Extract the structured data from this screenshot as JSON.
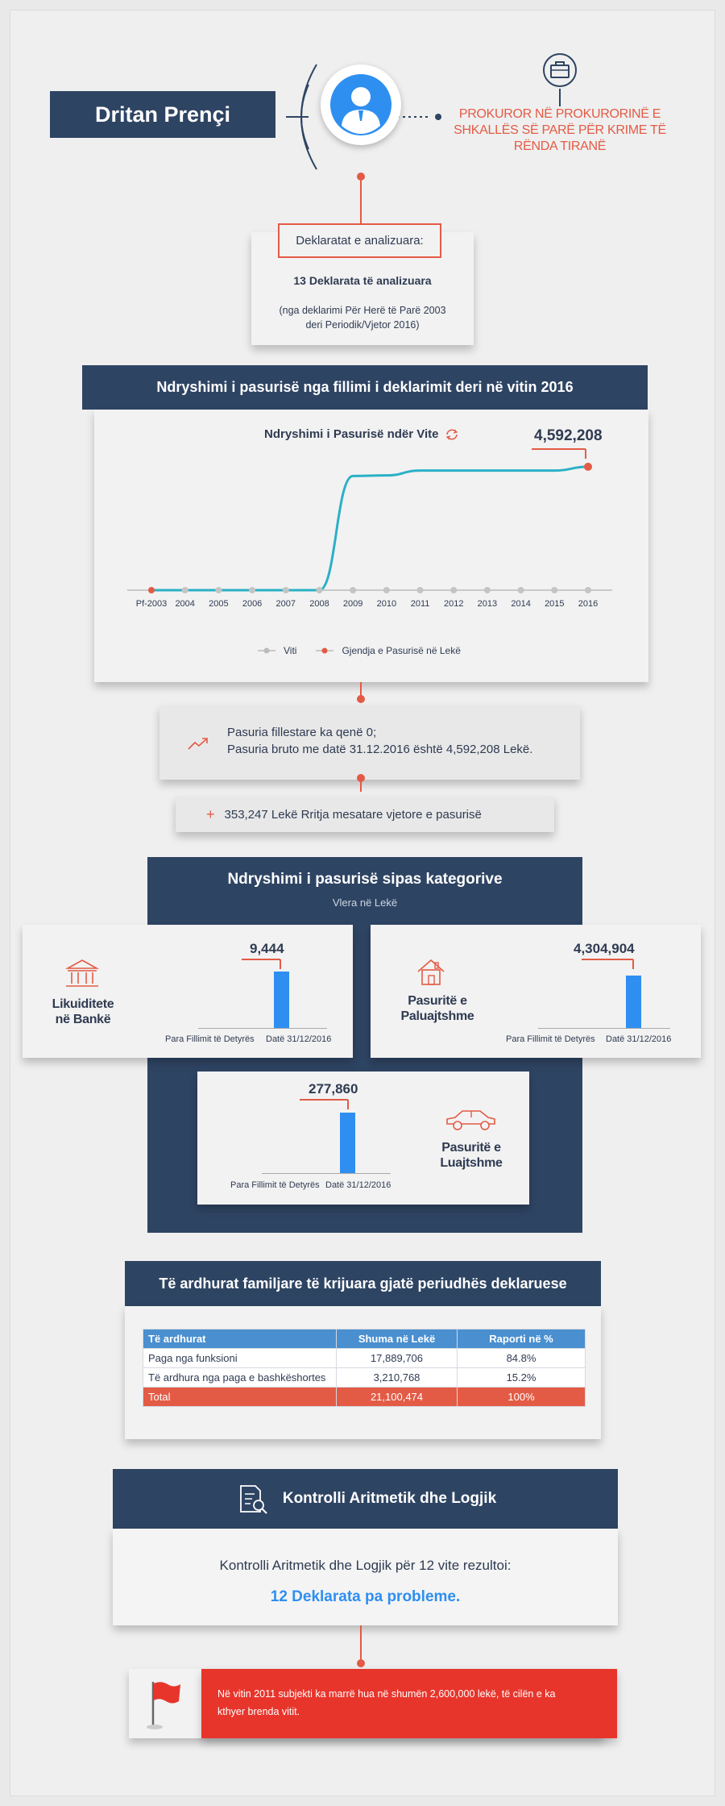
{
  "header": {
    "name": "Dritan Prençi",
    "position_line1": "PROKUROR NË PROKURORINË E",
    "position_line2": "SHKALLËS SË PARË PËR KRIME TË",
    "position_line3": "RËNDA TIRANË"
  },
  "declarations": {
    "title": "Deklaratat e analizuara:",
    "count": "13 Deklarata të analizuara",
    "note_line1": "(nga deklarimi Për Herë të Parë 2003",
    "note_line2": "deri Periodik/Vjetor 2016)"
  },
  "asset_change": {
    "banner": "Ndryshimi i pasurisë nga fillimi i deklarimit deri në vitin 2016",
    "chart_title": "Ndryshimi i Pasurisë ndër Vite",
    "legend_x": "Viti",
    "legend_series": "Gjendja e Pasurisë në Lekë",
    "final_label": "4,592,208"
  },
  "chart_data": {
    "type": "line",
    "title": "Ndryshimi i Pasurisë ndër Vite",
    "categories": [
      "Pf-2003",
      "2004",
      "2005",
      "2006",
      "2007",
      "2008",
      "2009",
      "2010",
      "2011",
      "2012",
      "2013",
      "2014",
      "2015",
      "2016"
    ],
    "series": [
      {
        "name": "Gjendja e Pasurisë në Lekë",
        "values": [
          0,
          0,
          0,
          0,
          0,
          0,
          4250000,
          4270000,
          4450000,
          4450000,
          4450000,
          4450000,
          4450000,
          4592208
        ]
      }
    ],
    "ylim": [
      0,
      4800000
    ],
    "grid": false,
    "legend": "bottom"
  },
  "summary": {
    "line1": "Pasuria fillestare ka qenë 0;",
    "line2": "Pasuria bruto me datë 31.12.2016 është 4,592,208 Lekë.",
    "growth": "353,247 Lekë Rritja mesatare vjetore e pasurisë"
  },
  "categories": {
    "title": "Ndryshimi i pasurisë sipas kategorive",
    "subtitle": "Vlera në Lekë",
    "items": [
      {
        "label1": "Likuiditete",
        "label2": "në Bankë",
        "value": "9,444",
        "start_label": "Para Fillimit të Detyrës",
        "end_label": "Datë 31/12/2016",
        "start_value": 0,
        "end_value": 9444
      },
      {
        "label1": "Pasuritë e",
        "label2": "Paluajtshme",
        "value": "4,304,904",
        "start_label": "Para Fillimit të Detyrës",
        "end_label": "Datë 31/12/2016",
        "start_value": 0,
        "end_value": 4304904
      },
      {
        "label1": "Pasuritë e",
        "label2": "Luajtshme",
        "value": "277,860",
        "start_label": "Para Fillimit të Detyrës",
        "end_label": "Datë 31/12/2016",
        "start_value": 0,
        "end_value": 277860
      }
    ]
  },
  "income": {
    "title": "Të ardhurat familjare të krijuara gjatë periudhës deklaruese",
    "headers": [
      "Të ardhurat",
      "Shuma në Lekë",
      "Raporti në %"
    ],
    "rows": [
      [
        "Paga nga funksioni",
        "17,889,706",
        "84.8%"
      ],
      [
        "Të ardhura nga paga e bashkëshortes",
        "3,210,768",
        "15.2%"
      ]
    ],
    "total": [
      "Total",
      "21,100,474",
      "100%"
    ]
  },
  "control": {
    "title": "Kontrolli Aritmetik dhe Logjik",
    "text": "Kontrolli Aritmetik dhe Logjik për 12 vite rezultoi:",
    "result": "12 Deklarata pa probleme."
  },
  "note": {
    "line1": "Në vitin 2011 subjekti ka marrë hua në shumën 2,600,000 lekë, të cilën e ka",
    "line2": "kthyer brenda vitit."
  },
  "colors": {
    "navy": "#2e4463",
    "accent": "#e35b45",
    "line": "#2bb0c6",
    "bar": "#2e8ff0",
    "table_header": "#4a8fd0",
    "alert": "#e8352c"
  }
}
